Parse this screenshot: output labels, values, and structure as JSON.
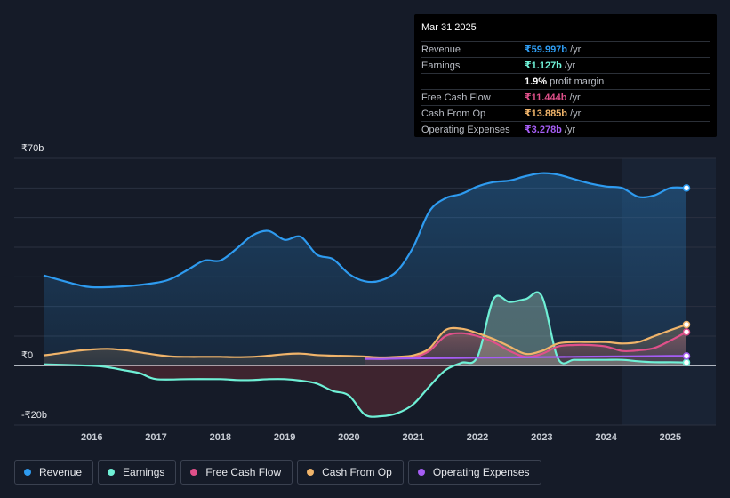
{
  "tooltip": {
    "date": "Mar 31 2025",
    "rows": [
      {
        "label": "Revenue",
        "value": "₹59.997b",
        "unit": "/yr",
        "color": "#2e9bf0"
      },
      {
        "label": "Earnings",
        "value": "₹1.127b",
        "unit": "/yr",
        "color": "#6ff0d6"
      },
      {
        "label": "",
        "value": "1.9%",
        "unit": "profit margin",
        "color": "#ffffff"
      },
      {
        "label": "Free Cash Flow",
        "value": "₹11.444b",
        "unit": "/yr",
        "color": "#e0508a"
      },
      {
        "label": "Cash From Op",
        "value": "₹13.885b",
        "unit": "/yr",
        "color": "#f0b46a"
      },
      {
        "label": "Operating Expenses",
        "value": "₹3.278b",
        "unit": "/yr",
        "color": "#a55df5"
      }
    ]
  },
  "legend": [
    {
      "label": "Revenue",
      "color": "#2e9bf0"
    },
    {
      "label": "Earnings",
      "color": "#6ff0d6"
    },
    {
      "label": "Free Cash Flow",
      "color": "#e0508a"
    },
    {
      "label": "Cash From Op",
      "color": "#f0b46a"
    },
    {
      "label": "Operating Expenses",
      "color": "#a55df5"
    }
  ],
  "chart_data": {
    "type": "area",
    "title": "",
    "xlabel": "",
    "ylabel": "",
    "ylim": [
      -20,
      70
    ],
    "xlim": [
      2015.25,
      2025.25
    ],
    "y_tick_labels": [
      {
        "value": 70,
        "label": "₹70b"
      },
      {
        "value": 0,
        "label": "₹0"
      },
      {
        "value": -20,
        "label": "-₹20b"
      }
    ],
    "x_ticks": [
      "2016",
      "2017",
      "2018",
      "2019",
      "2020",
      "2021",
      "2022",
      "2023",
      "2024",
      "2025"
    ],
    "x_tick_values": [
      2016,
      2017,
      2018,
      2019,
      2020,
      2021,
      2022,
      2023,
      2024,
      2025
    ],
    "forecast_start": 2024.25,
    "series": [
      {
        "name": "Revenue",
        "color": "#2e9bf0",
        "fill": true,
        "x": [
          2015.25,
          2015.75,
          2016.0,
          2016.5,
          2017.0,
          2017.25,
          2017.5,
          2017.75,
          2018.0,
          2018.25,
          2018.5,
          2018.75,
          2019.0,
          2019.25,
          2019.5,
          2019.75,
          2020.0,
          2020.25,
          2020.5,
          2020.75,
          2021.0,
          2021.25,
          2021.5,
          2021.75,
          2022.0,
          2022.25,
          2022.5,
          2022.75,
          2023.0,
          2023.25,
          2023.5,
          2023.75,
          2024.0,
          2024.25,
          2024.5,
          2024.75,
          2025.0,
          2025.25
        ],
        "values": [
          30.5,
          27.5,
          26.5,
          26.8,
          28.0,
          29.5,
          32.5,
          35.5,
          35.5,
          39.5,
          44.0,
          45.5,
          42.5,
          43.5,
          37.5,
          36.0,
          31.0,
          28.5,
          28.8,
          32.0,
          40.0,
          52.0,
          56.5,
          58.0,
          60.5,
          62.0,
          62.5,
          64.0,
          65.0,
          64.5,
          63.0,
          61.5,
          60.5,
          60.0,
          57.0,
          57.5,
          60.0,
          60.0
        ]
      },
      {
        "name": "Earnings",
        "color": "#6ff0d6",
        "fill": true,
        "x": [
          2015.25,
          2016.0,
          2016.25,
          2016.5,
          2016.75,
          2017.0,
          2017.5,
          2018.0,
          2018.25,
          2018.5,
          2018.75,
          2019.0,
          2019.25,
          2019.5,
          2019.75,
          2020.0,
          2020.25,
          2020.5,
          2020.75,
          2021.0,
          2021.25,
          2021.5,
          2021.75,
          2022.0,
          2022.25,
          2022.5,
          2022.75,
          2023.0,
          2023.25,
          2023.5,
          2023.75,
          2024.0,
          2024.25,
          2024.5,
          2024.75,
          2025.0,
          2025.25
        ],
        "values": [
          0.5,
          0.0,
          -0.5,
          -1.5,
          -2.5,
          -4.5,
          -4.5,
          -4.5,
          -4.8,
          -4.8,
          -4.5,
          -4.5,
          -5.0,
          -6.0,
          -8.5,
          -10.0,
          -16.5,
          -17.0,
          -16.0,
          -13.0,
          -7.0,
          -1.5,
          1.0,
          3.0,
          22.5,
          21.5,
          22.5,
          23.5,
          2.5,
          2.0,
          2.0,
          2.0,
          2.0,
          1.5,
          1.2,
          1.2,
          1.1
        ]
      },
      {
        "name": "Free Cash Flow",
        "color": "#e0508a",
        "fill": true,
        "x": [
          2020.25,
          2020.5,
          2020.75,
          2021.0,
          2021.25,
          2021.5,
          2021.75,
          2022.0,
          2022.25,
          2022.5,
          2022.75,
          2023.0,
          2023.25,
          2023.5,
          2023.75,
          2024.0,
          2024.25,
          2024.5,
          2024.75,
          2025.0,
          2025.25
        ],
        "values": [
          2.5,
          2.3,
          2.5,
          2.8,
          5.0,
          10.0,
          11.0,
          10.0,
          8.0,
          5.0,
          3.0,
          4.0,
          6.5,
          7.0,
          7.0,
          6.5,
          5.0,
          5.2,
          6.0,
          8.5,
          11.4
        ]
      },
      {
        "name": "Cash From Op",
        "color": "#f0b46a",
        "fill": true,
        "x": [
          2015.25,
          2015.5,
          2015.75,
          2016.0,
          2016.25,
          2016.5,
          2016.75,
          2017.0,
          2017.25,
          2017.5,
          2017.75,
          2018.0,
          2018.25,
          2018.5,
          2018.75,
          2019.0,
          2019.25,
          2019.5,
          2019.75,
          2020.0,
          2020.25,
          2020.5,
          2020.75,
          2021.0,
          2021.25,
          2021.5,
          2021.75,
          2022.0,
          2022.25,
          2022.5,
          2022.75,
          2023.0,
          2023.25,
          2023.5,
          2023.75,
          2024.0,
          2024.25,
          2024.5,
          2024.75,
          2025.0,
          2025.25
        ],
        "values": [
          3.5,
          4.2,
          5.0,
          5.5,
          5.7,
          5.3,
          4.5,
          3.7,
          3.1,
          3.0,
          3.0,
          3.0,
          2.9,
          3.0,
          3.4,
          3.9,
          4.1,
          3.6,
          3.4,
          3.3,
          3.1,
          2.8,
          3.0,
          3.5,
          5.8,
          12.0,
          12.5,
          11.0,
          9.0,
          6.5,
          4.0,
          5.0,
          7.5,
          8.0,
          8.0,
          8.0,
          7.5,
          8.0,
          10.0,
          12.0,
          13.9
        ]
      },
      {
        "name": "Operating Expenses",
        "color": "#a55df5",
        "fill": false,
        "x": [
          2020.25,
          2020.5,
          2020.75,
          2021.0,
          2021.5,
          2022.0,
          2022.5,
          2023.0,
          2023.5,
          2024.0,
          2024.5,
          2025.0,
          2025.25
        ],
        "values": [
          2.3,
          2.3,
          2.4,
          2.5,
          2.6,
          2.7,
          2.8,
          2.9,
          3.0,
          3.1,
          3.2,
          3.3,
          3.3
        ]
      }
    ]
  }
}
